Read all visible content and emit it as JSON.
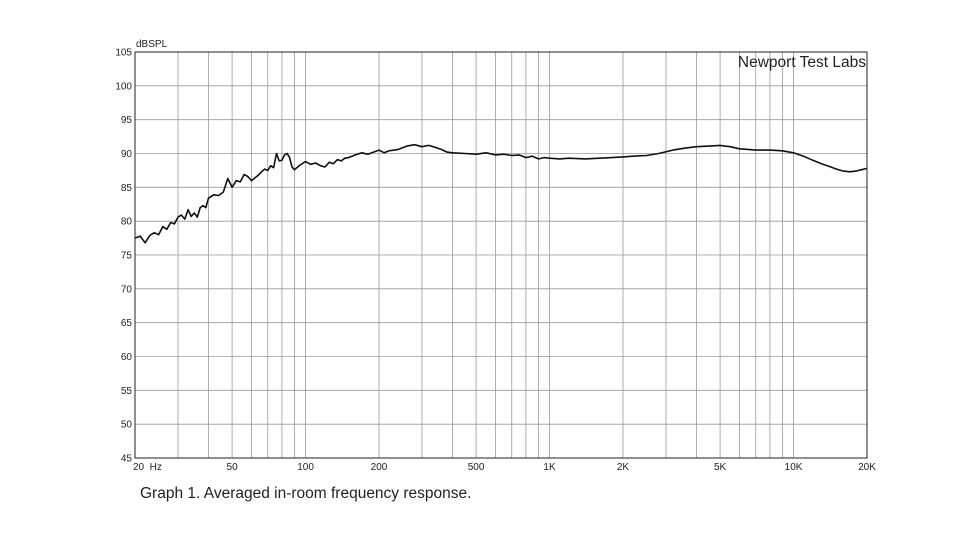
{
  "chart_data": {
    "type": "line",
    "ylabel": "dBSPL",
    "x_scale": "log",
    "xlim": [
      20,
      20000
    ],
    "ylim": [
      45,
      105
    ],
    "yticks": [
      45,
      50,
      55,
      60,
      65,
      70,
      75,
      80,
      85,
      90,
      95,
      100,
      105
    ],
    "xtick_labels": [
      {
        "value": 20,
        "label": "20  Hz"
      },
      {
        "value": 50,
        "label": "50"
      },
      {
        "value": 100,
        "label": "100"
      },
      {
        "value": 200,
        "label": "200"
      },
      {
        "value": 500,
        "label": "500"
      },
      {
        "value": 1000,
        "label": "1K"
      },
      {
        "value": 2000,
        "label": "2K"
      },
      {
        "value": 5000,
        "label": "5K"
      },
      {
        "value": 10000,
        "label": "10K"
      },
      {
        "value": 20000,
        "label": "20K"
      }
    ],
    "grid": true,
    "annotation": "Newport Test Labs",
    "series": [
      {
        "color": "#111111",
        "x": [
          20,
          21,
          22,
          23,
          24,
          25,
          26,
          27,
          28,
          29,
          30,
          31,
          32,
          33,
          34,
          35,
          36,
          37,
          38,
          39,
          40,
          42,
          44,
          46,
          48,
          50,
          52,
          54,
          56,
          58,
          60,
          62,
          64,
          66,
          68,
          70,
          72,
          74,
          76,
          78,
          80,
          82,
          84,
          86,
          88,
          90,
          95,
          100,
          105,
          110,
          115,
          120,
          125,
          130,
          135,
          140,
          145,
          150,
          160,
          170,
          180,
          190,
          200,
          210,
          220,
          240,
          260,
          280,
          300,
          320,
          340,
          360,
          380,
          400,
          450,
          500,
          550,
          600,
          650,
          700,
          750,
          800,
          850,
          900,
          950,
          1000,
          1100,
          1200,
          1400,
          1600,
          1800,
          2000,
          2200,
          2500,
          2800,
          3200,
          3600,
          4000,
          4500,
          5000,
          5500,
          6000,
          6500,
          7000,
          8000,
          9000,
          10000,
          11000,
          12000,
          13000,
          14000,
          15000,
          16000,
          17000,
          18000,
          19000,
          20000
        ],
        "y": [
          77.5,
          77.8,
          76.8,
          77.9,
          78.3,
          78.0,
          79.2,
          78.8,
          79.8,
          79.6,
          80.6,
          80.9,
          80.3,
          81.7,
          80.7,
          81.2,
          80.6,
          82.0,
          82.3,
          82.0,
          83.4,
          83.9,
          83.8,
          84.3,
          86.3,
          85.0,
          86.0,
          85.8,
          86.9,
          86.6,
          86.0,
          86.4,
          86.8,
          87.3,
          87.7,
          87.5,
          88.2,
          87.9,
          90.0,
          88.9,
          89.0,
          89.8,
          90.0,
          89.4,
          88.0,
          87.6,
          88.3,
          88.8,
          88.4,
          88.6,
          88.2,
          88.0,
          88.7,
          88.5,
          89.1,
          88.9,
          89.3,
          89.4,
          89.8,
          90.1,
          89.9,
          90.2,
          90.5,
          90.1,
          90.4,
          90.6,
          91.1,
          91.3,
          91.0,
          91.2,
          90.9,
          90.6,
          90.2,
          90.1,
          90.0,
          89.9,
          90.1,
          89.8,
          89.9,
          89.7,
          89.8,
          89.4,
          89.6,
          89.2,
          89.4,
          89.3,
          89.2,
          89.3,
          89.2,
          89.3,
          89.4,
          89.5,
          89.6,
          89.7,
          90.0,
          90.5,
          90.8,
          91.0,
          91.1,
          91.2,
          91.0,
          90.7,
          90.6,
          90.5,
          90.5,
          90.4,
          90.1,
          89.6,
          89.0,
          88.5,
          88.1,
          87.7,
          87.4,
          87.3,
          87.4,
          87.6,
          87.8
        ]
      }
    ]
  },
  "caption": "Graph 1. Averaged in-room frequency response."
}
